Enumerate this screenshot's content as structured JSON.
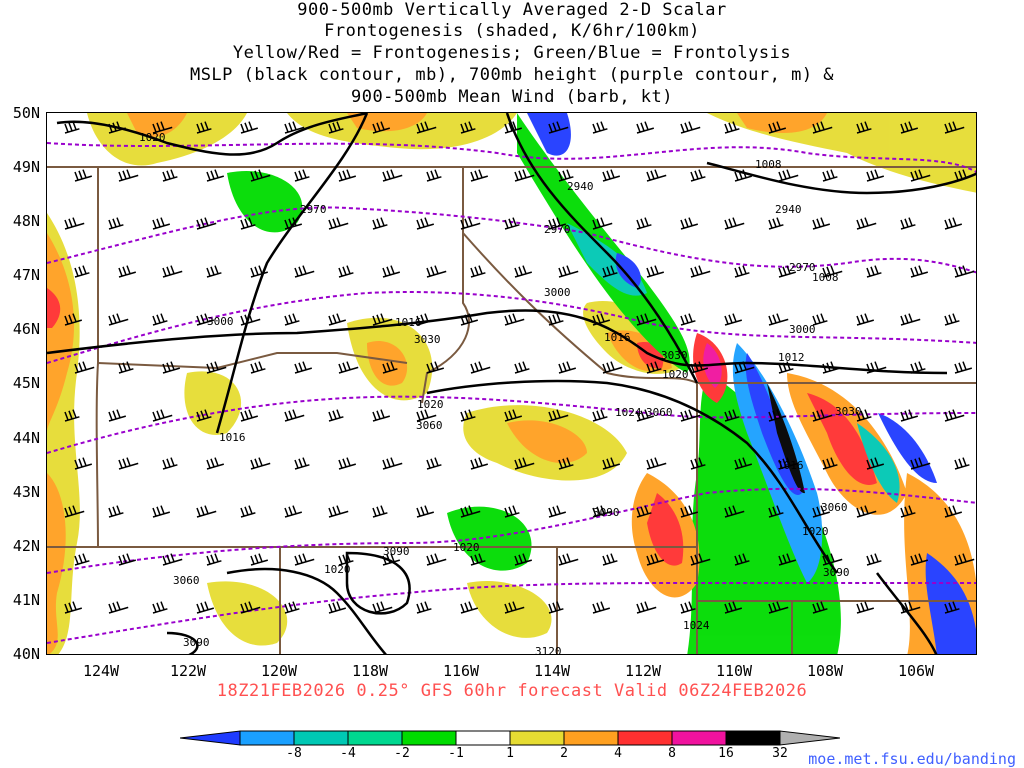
{
  "title": {
    "line1": "900-500mb Vertically Averaged 2-D Scalar",
    "line2": "Frontogenesis (shaded, K/6hr/100km)",
    "line3": "Yellow/Red = Frontogenesis;  Green/Blue = Frontolysis",
    "line4": "MSLP (black contour, mb), 700mb height (purple contour, m) &",
    "line5": "900-500mb Mean Wind (barb, kt)"
  },
  "latitude_labels": [
    "50N",
    "49N",
    "48N",
    "47N",
    "46N",
    "45N",
    "44N",
    "43N",
    "42N",
    "41N",
    "40N"
  ],
  "longitude_labels": [
    "124W",
    "122W",
    "120W",
    "118W",
    "116W",
    "114W",
    "112W",
    "110W",
    "108W",
    "106W"
  ],
  "valid_line": "18Z21FEB2026 0.25° GFS 60hr forecast Valid 06Z24FEB2026",
  "colorbar": {
    "ticks": [
      "-8",
      "-4",
      "-2",
      "-1",
      "1",
      "2",
      "4",
      "8",
      "16",
      "32"
    ],
    "colors": [
      "#1f3bff",
      "#1aa0ff",
      "#00c8b4",
      "#00d890",
      "#00dc00",
      "#ffffff",
      "#e6dc32",
      "#ffa020",
      "#ff3030",
      "#f0129e",
      "#000000",
      "#b0b0b0"
    ]
  },
  "credit": "moe.met.fsu.edu/banding",
  "contour_labels": {
    "mslp": [
      "1020",
      "1008",
      "1008",
      "1016",
      "1016",
      "1016",
      "1020",
      "1020",
      "1020",
      "1024",
      "1012",
      "1016",
      "1020",
      "1020",
      "1020",
      "1024"
    ],
    "height": [
      "2940",
      "2970",
      "2970",
      "2940",
      "2970",
      "3000",
      "3000",
      "3000",
      "3030",
      "3030",
      "3060",
      "3060",
      "3030",
      "3060",
      "3090",
      "3090",
      "3060",
      "3090",
      "3090",
      "3120"
    ]
  },
  "colors": {
    "mslp": "#000000",
    "height": "#9900cc",
    "borders": "#7a5a40",
    "barbs": "#000000"
  }
}
